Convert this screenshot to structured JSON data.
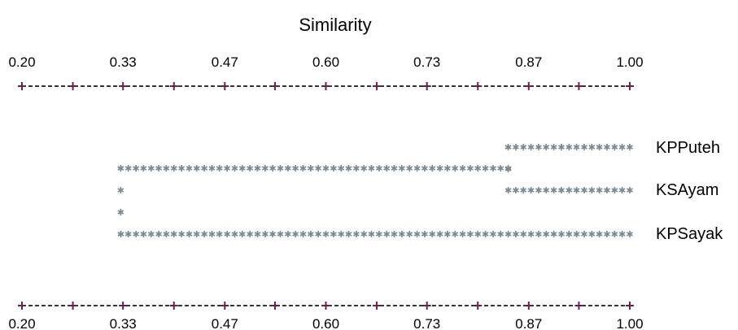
{
  "title": "Similarity",
  "axis": {
    "min": 0.2,
    "max": 1.0,
    "labels": [
      "0.20",
      "0.33",
      "0.47",
      "0.60",
      "0.73",
      "0.87",
      "1.00"
    ],
    "label_values": [
      0.2,
      0.333,
      0.467,
      0.6,
      0.733,
      0.867,
      1.0
    ],
    "minor_ticks": [
      0.2,
      0.267,
      0.333,
      0.4,
      0.467,
      0.533,
      0.6,
      0.667,
      0.733,
      0.8,
      0.867,
      0.933,
      1.0
    ]
  },
  "dendrogram": {
    "leaves": [
      "KPPuteh",
      "KSAyam",
      "KPSayak"
    ],
    "merges": [
      {
        "members": [
          "KPPuteh",
          "KSAyam"
        ],
        "similarity": 0.84
      },
      {
        "members": [
          "KPPuteh-KSAyam",
          "KPSayak"
        ],
        "similarity": 0.33
      }
    ],
    "line_color": "#7a8a96",
    "axis_color": "#2f3a33",
    "tick_color": "#6a1f4a"
  }
}
